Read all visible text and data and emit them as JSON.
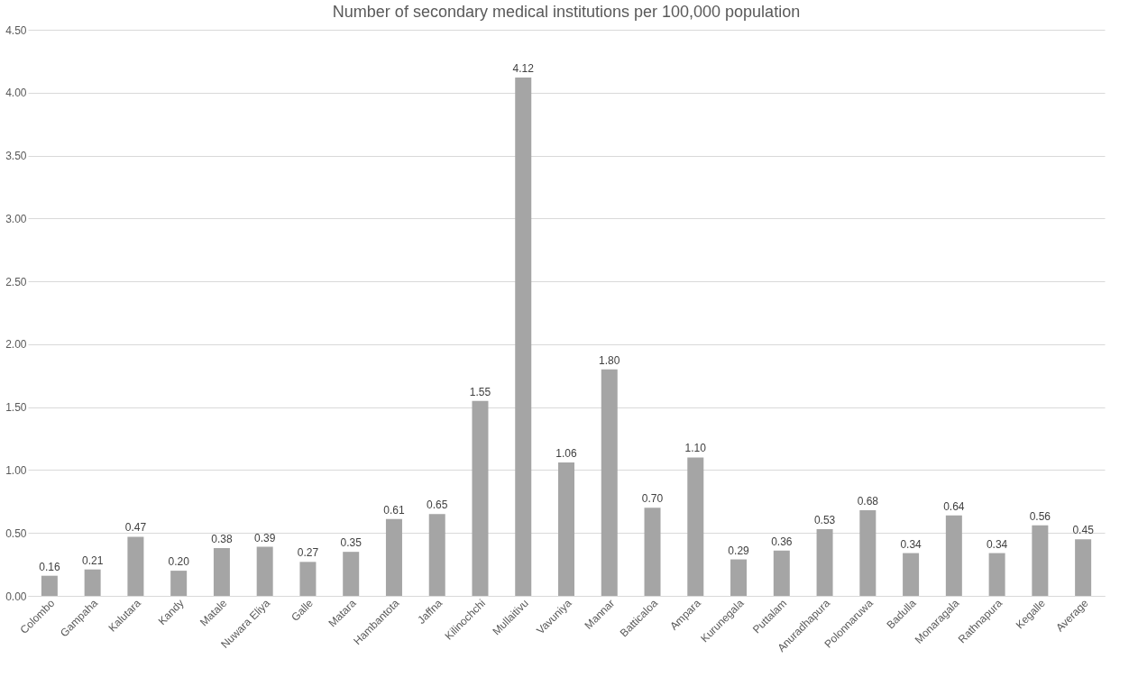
{
  "chart_data": {
    "type": "bar",
    "title": "Number of secondary medical institutions per 100,000 population",
    "categories": [
      "Colombo",
      "Gampaha",
      "Kalutara",
      "Kandy",
      "Matale",
      "Nuwara Eliya",
      "Galle",
      "Matara",
      "Hambantota",
      "Jaffna",
      "Kilinochchi",
      "Mullaitivu",
      "Vavuniya",
      "Mannar",
      "Batticaloa",
      "Ampara",
      "Kurunegala",
      "Puttalam",
      "Anuradhapura",
      "Polonnaruwa",
      "Badulla",
      "Monaragala",
      "Rathnapura",
      "Kegalle",
      "Average"
    ],
    "values": [
      0.16,
      0.21,
      0.47,
      0.2,
      0.38,
      0.39,
      0.27,
      0.35,
      0.61,
      0.65,
      1.55,
      4.12,
      1.06,
      1.8,
      0.7,
      1.1,
      0.29,
      0.36,
      0.53,
      0.68,
      0.34,
      0.64,
      0.34,
      0.56,
      0.45
    ],
    "value_labels": [
      "0.16",
      "0.21",
      "0.47",
      "0.20",
      "0.38",
      "0.39",
      "0.27",
      "0.35",
      "0.61",
      "0.65",
      "1.55",
      "4.12",
      "1.06",
      "1.80",
      "0.70",
      "1.10",
      "0.29",
      "0.36",
      "0.53",
      "0.68",
      "0.34",
      "0.64",
      "0.34",
      "0.56",
      "0.45"
    ],
    "color": "#a5a5a5",
    "ylim": [
      0,
      4.5
    ],
    "yticks": [
      {
        "value": 0,
        "label": "0.00"
      },
      {
        "value": 0.5,
        "label": "0.50"
      },
      {
        "value": 1,
        "label": "1.00"
      },
      {
        "value": 1.5,
        "label": "1.50"
      },
      {
        "value": 2,
        "label": "2.00"
      },
      {
        "value": 2.5,
        "label": "2.50"
      },
      {
        "value": 3,
        "label": "3.00"
      },
      {
        "value": 3.5,
        "label": "3.50"
      },
      {
        "value": 4,
        "label": "4.00"
      },
      {
        "value": 4.5,
        "label": "4.50"
      }
    ],
    "grid": "y"
  }
}
